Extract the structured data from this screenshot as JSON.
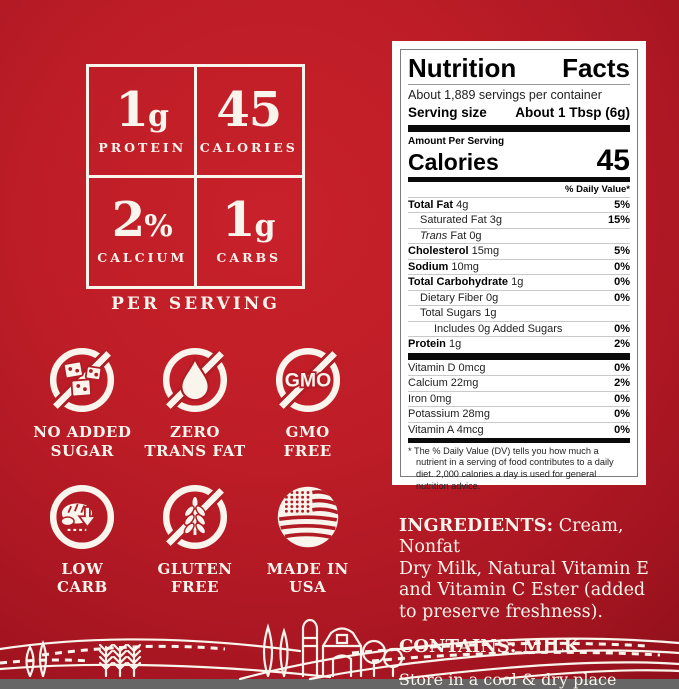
{
  "theme": {
    "cream": "#f9f4ec",
    "badge_red": "#b01b24",
    "bg_center": "#c8212b",
    "bg_edge": "#90101b",
    "panel_bg": "#ffffff",
    "text_black": "#000000"
  },
  "per_serving": {
    "caption": "PER SERVING",
    "cells": [
      {
        "value": "1",
        "unit": "g",
        "label": "PROTEIN"
      },
      {
        "value": "45",
        "unit": "",
        "label": "CALORIES"
      },
      {
        "value": "2",
        "unit": "%",
        "label": "CALCIUM"
      },
      {
        "value": "1",
        "unit": "g",
        "label": "CARBS"
      }
    ]
  },
  "badges": [
    {
      "icon": "no-added-sugar-icon",
      "label": "NO ADDED\nSUGAR"
    },
    {
      "icon": "zero-trans-fat-icon",
      "label": "ZERO\nTRANS FAT"
    },
    {
      "icon": "gmo-free-icon",
      "label": "GMO\nFREE",
      "icon_text": "GMO"
    },
    {
      "icon": "low-carb-icon",
      "label": "LOW\nCARB"
    },
    {
      "icon": "gluten-free-icon",
      "label": "GLUTEN\nFREE"
    },
    {
      "icon": "made-in-usa-icon",
      "label": "MADE IN\nUSA"
    }
  ],
  "nutrition": {
    "title_left": "Nutrition",
    "title_right": "Facts",
    "servings_per_container": "About 1,889 servings per container",
    "serving_size_label": "Serving size",
    "serving_size_value": "About 1 Tbsp (6g)",
    "amount_per_serving": "Amount Per Serving",
    "calories_label": "Calories",
    "calories_value": "45",
    "daily_value_header": "% Daily Value*",
    "rows": [
      {
        "name": "Total Fat",
        "amount": "4g",
        "dv": "5%",
        "bold": true,
        "indent": 0,
        "italic": false
      },
      {
        "name": "Saturated Fat",
        "amount": "3g",
        "dv": "15%",
        "bold": false,
        "indent": 1,
        "italic": false
      },
      {
        "name": "Trans",
        "amount": "Fat 0g",
        "dv": "",
        "bold": false,
        "indent": 1,
        "italic": true
      },
      {
        "name": "Cholesterol",
        "amount": "15mg",
        "dv": "5%",
        "bold": true,
        "indent": 0,
        "italic": false
      },
      {
        "name": "Sodium",
        "amount": "10mg",
        "dv": "0%",
        "bold": true,
        "indent": 0,
        "italic": false
      },
      {
        "name": "Total Carbohydrate",
        "amount": "1g",
        "dv": "0%",
        "bold": true,
        "indent": 0,
        "italic": false
      },
      {
        "name": "Dietary Fiber",
        "amount": "0g",
        "dv": "0%",
        "bold": false,
        "indent": 1,
        "italic": false
      },
      {
        "name": "Total Sugars",
        "amount": "1g",
        "dv": "",
        "bold": false,
        "indent": 1,
        "italic": false
      },
      {
        "name": "Includes 0g Added Sugars",
        "amount": "",
        "dv": "0%",
        "bold": false,
        "indent": 2,
        "italic": false
      },
      {
        "name": "Protein",
        "amount": "1g",
        "dv": "2%",
        "bold": true,
        "indent": 0,
        "italic": false
      }
    ],
    "vitamins": [
      {
        "name": "Vitamin D",
        "amount": "0mcg",
        "dv": "0%"
      },
      {
        "name": "Calcium",
        "amount": "22mg",
        "dv": "2%"
      },
      {
        "name": "Iron",
        "amount": "0mg",
        "dv": "0%"
      },
      {
        "name": "Potassium",
        "amount": "28mg",
        "dv": "0%"
      },
      {
        "name": "Vitamin A",
        "amount": "4mcg",
        "dv": "0%"
      }
    ],
    "footnote": "* The % Daily Value (DV) tells you how much a nutrient in a serving of food contributes to a daily diet. 2,000 calories a day is used for general nutrition advice."
  },
  "ingredients": {
    "prefix": "INGREDIENTS:",
    "body": " Cream, Nonfat\nDry Milk, Natural Vitamin E\nand Vitamin C Ester (added\nto preserve freshness).",
    "contains": "CONTAINS: MILK",
    "storage": "Store in a cool & dry place"
  }
}
